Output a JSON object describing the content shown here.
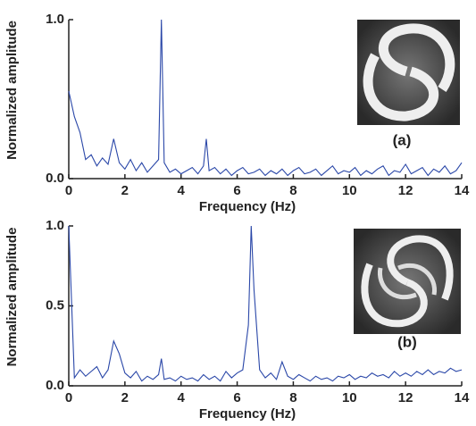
{
  "chart_data": [
    {
      "type": "line",
      "ylabel": "Normalized amplitude",
      "xlabel": "Frequency (Hz)",
      "annotation": "(a)",
      "xlim": [
        0,
        14
      ],
      "ylim": [
        0,
        1
      ],
      "xticks": [
        0,
        2,
        4,
        6,
        8,
        10,
        12,
        14
      ],
      "yticks": [
        {
          "value": 0,
          "label": "0.0"
        },
        {
          "value": 1,
          "label": "1.0"
        }
      ],
      "x": [
        0,
        0.2,
        0.4,
        0.6,
        0.8,
        1,
        1.2,
        1.4,
        1.6,
        1.8,
        2,
        2.2,
        2.4,
        2.6,
        2.8,
        3,
        3.2,
        3.3,
        3.4,
        3.6,
        3.8,
        4,
        4.2,
        4.4,
        4.6,
        4.8,
        4.9,
        5,
        5.2,
        5.4,
        5.6,
        5.8,
        6,
        6.2,
        6.4,
        6.6,
        6.8,
        7,
        7.2,
        7.4,
        7.6,
        7.8,
        8,
        8.2,
        8.4,
        8.6,
        8.8,
        9,
        9.2,
        9.4,
        9.6,
        9.8,
        10,
        10.2,
        10.4,
        10.6,
        10.8,
        11,
        11.2,
        11.4,
        11.6,
        11.8,
        12,
        12.2,
        12.4,
        12.6,
        12.8,
        13,
        13.2,
        13.4,
        13.6,
        13.8,
        14
      ],
      "series": [
        {
          "color": "#2a47a8",
          "values": [
            0.55,
            0.39,
            0.29,
            0.12,
            0.15,
            0.08,
            0.13,
            0.09,
            0.25,
            0.1,
            0.06,
            0.12,
            0.05,
            0.1,
            0.04,
            0.08,
            0.12,
            1.0,
            0.1,
            0.04,
            0.06,
            0.03,
            0.05,
            0.07,
            0.03,
            0.08,
            0.25,
            0.05,
            0.07,
            0.03,
            0.06,
            0.02,
            0.05,
            0.07,
            0.03,
            0.04,
            0.06,
            0.02,
            0.05,
            0.03,
            0.06,
            0.02,
            0.05,
            0.07,
            0.03,
            0.04,
            0.06,
            0.02,
            0.05,
            0.08,
            0.03,
            0.05,
            0.04,
            0.07,
            0.02,
            0.05,
            0.03,
            0.06,
            0.08,
            0.02,
            0.05,
            0.04,
            0.09,
            0.03,
            0.05,
            0.07,
            0.02,
            0.06,
            0.04,
            0.08,
            0.03,
            0.05,
            0.1
          ]
        }
      ]
    },
    {
      "type": "line",
      "ylabel": "Normalized amplitude",
      "xlabel": "Frequency (Hz)",
      "annotation": "(b)",
      "xlim": [
        0,
        14
      ],
      "ylim": [
        0,
        1
      ],
      "xticks": [
        0,
        2,
        4,
        6,
        8,
        10,
        12,
        14
      ],
      "yticks": [
        {
          "value": 0,
          "label": "0.0"
        },
        {
          "value": 0.5,
          "label": "0.5"
        },
        {
          "value": 1,
          "label": "1.0"
        }
      ],
      "x": [
        0,
        0.2,
        0.4,
        0.6,
        0.8,
        1,
        1.2,
        1.4,
        1.6,
        1.8,
        2,
        2.2,
        2.4,
        2.6,
        2.8,
        3,
        3.2,
        3.3,
        3.4,
        3.6,
        3.8,
        4,
        4.2,
        4.4,
        4.6,
        4.8,
        5,
        5.2,
        5.4,
        5.6,
        5.8,
        6,
        6.2,
        6.4,
        6.5,
        6.6,
        6.8,
        7,
        7.2,
        7.4,
        7.6,
        7.8,
        8,
        8.2,
        8.4,
        8.6,
        8.8,
        9,
        9.2,
        9.4,
        9.6,
        9.8,
        10,
        10.2,
        10.4,
        10.6,
        10.8,
        11,
        11.2,
        11.4,
        11.6,
        11.8,
        12,
        12.2,
        12.4,
        12.6,
        12.8,
        13,
        13.2,
        13.4,
        13.6,
        13.8,
        14
      ],
      "series": [
        {
          "color": "#2a47a8",
          "values": [
            1.0,
            0.05,
            0.1,
            0.06,
            0.09,
            0.12,
            0.05,
            0.1,
            0.28,
            0.2,
            0.08,
            0.05,
            0.09,
            0.03,
            0.06,
            0.04,
            0.07,
            0.17,
            0.04,
            0.05,
            0.03,
            0.06,
            0.04,
            0.05,
            0.03,
            0.07,
            0.04,
            0.06,
            0.03,
            0.09,
            0.05,
            0.08,
            0.1,
            0.38,
            1.0,
            0.6,
            0.1,
            0.05,
            0.08,
            0.04,
            0.15,
            0.06,
            0.04,
            0.07,
            0.05,
            0.03,
            0.06,
            0.04,
            0.05,
            0.03,
            0.06,
            0.05,
            0.07,
            0.04,
            0.06,
            0.05,
            0.08,
            0.06,
            0.07,
            0.05,
            0.09,
            0.06,
            0.08,
            0.06,
            0.09,
            0.07,
            0.1,
            0.07,
            0.09,
            0.08,
            0.11,
            0.09,
            0.1
          ]
        }
      ]
    }
  ]
}
